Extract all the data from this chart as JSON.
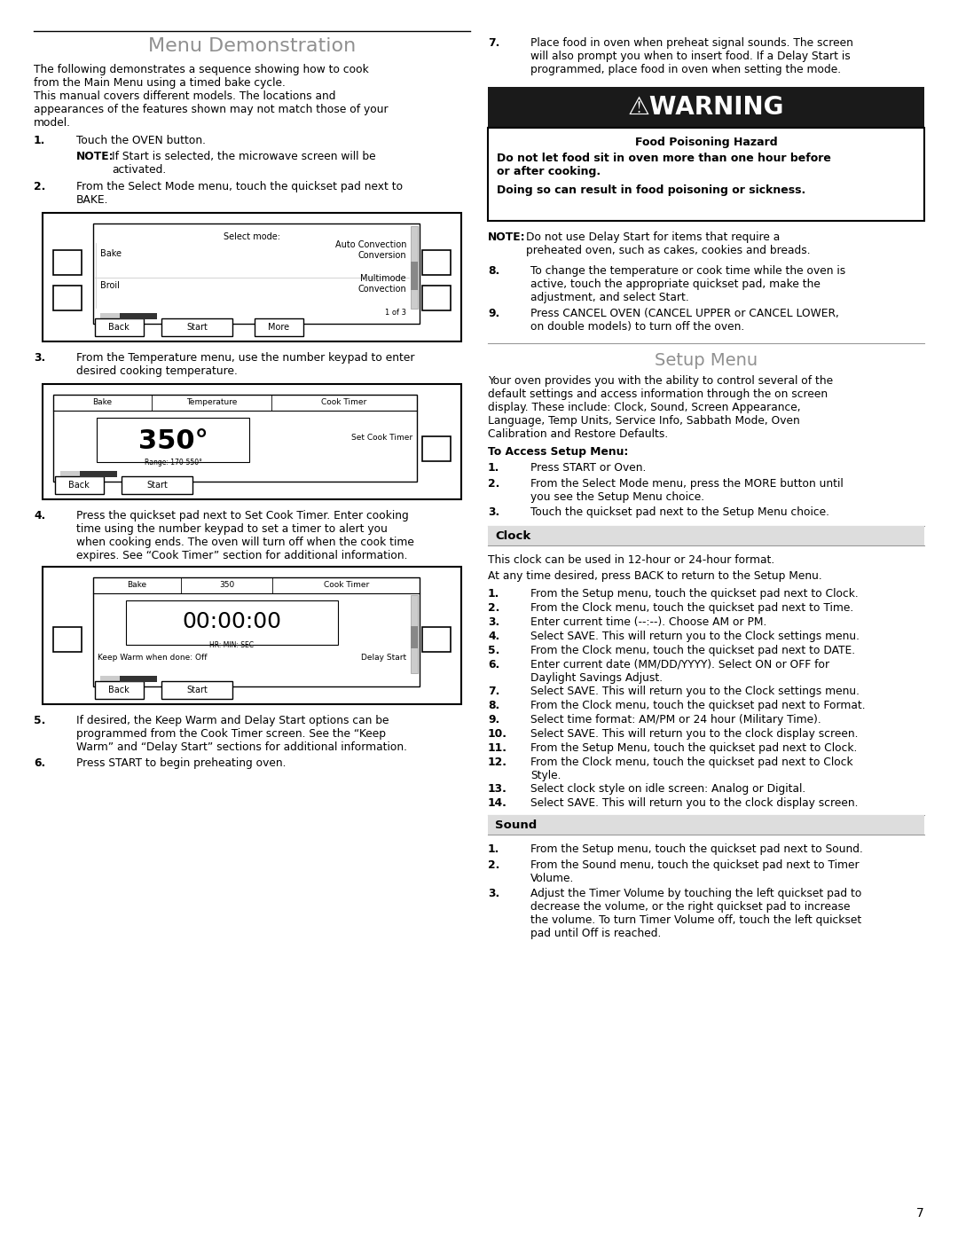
{
  "page_bg": "#ffffff",
  "page_number": "7",
  "menu_demo_title": "Menu Demonstration",
  "menu_demo_title_color": "#909090",
  "para1": "The following demonstrates a sequence showing how to cook from the Main Menu using a timed bake cycle.",
  "para2": "This manual covers different models. The locations and appearances of the features shown may not match those of your model.",
  "step1_num": "1.",
  "step1_text": "Touch the OVEN button.",
  "step1_note": "NOTE: If Start is selected, the microwave screen will be activated.",
  "step2_num": "2.",
  "step2_text": "From the Select Mode menu, touch the quickset pad next to BAKE.",
  "step3_num": "3.",
  "step3_text": "From the Temperature menu, use the number keypad to enter desired cooking temperature.",
  "step4_num": "4.",
  "step4_text": "Press the quickset pad next to Set Cook Timer. Enter cooking time using the number keypad to set a timer to alert you when cooking ends. The oven will turn off when the cook time expires. See “Cook Timer” section for additional information.",
  "step5_num": "5.",
  "step5_text": "If desired, the Keep Warm and Delay Start options can be programmed from the Cook Timer screen. See the “Keep Warm” and “Delay Start” sections for additional information.",
  "step6_num": "6.",
  "step6_text": "Press START to begin preheating oven.",
  "step7_num": "7.",
  "step7_text": "Place food in oven when preheat signal sounds. The screen will also prompt you when to insert food. If a Delay Start is programmed, place food in oven when setting the mode.",
  "warning_title_text": "⚠WARNING",
  "warning_food_hazard": "Food Poisoning Hazard",
  "warning_body1": "Do not let food sit in oven more than one hour before or after cooking.",
  "warning_body2": "Doing so can result in food poisoning or sickness.",
  "note8_text": "NOTE: Do not use Delay Start for items that require a preheated oven, such as cakes, cookies and breads.",
  "step8_num": "8.",
  "step8_text": "To change the temperature or cook time while the oven is active, touch the appropriate quickset pad, make the adjustment, and select Start.",
  "step9_num": "9.",
  "step9_text": "Press CANCEL OVEN (CANCEL UPPER or CANCEL LOWER, on double models) to turn off the oven.",
  "setup_menu_title": "Setup Menu",
  "setup_menu_title_color": "#909090",
  "setup_para": "Your oven provides you with the ability to control several of the default settings and access information through the on screen display. These include: Clock, Sound, Screen Appearance, Language, Temp Units, Service Info, Sabbath Mode, Oven Calibration and Restore Defaults.",
  "access_title": "To Access Setup Menu:",
  "access_steps": [
    "Press START or Oven.",
    "From the Select Mode menu, press the MORE button until you see the Setup Menu choice.",
    "Touch the quickset pad next to the Setup Menu choice."
  ],
  "clock_title": "Clock",
  "clock_para1": "This clock can be used in 12-hour or 24-hour format.",
  "clock_para2": "At any time desired, press BACK to return to the Setup Menu.",
  "clock_steps": [
    "From the Setup menu, touch the quickset pad next to Clock.",
    "From the Clock menu, touch the quickset pad next to Time.",
    "Enter current time (--:--). Choose AM or PM.",
    "Select SAVE. This will return you to the Clock settings menu.",
    "From the Clock menu, touch the quickset pad next to DATE.",
    "Enter current date (MM/DD/YYYY). Select ON or OFF for Daylight Savings Adjust.",
    "Select SAVE. This will return you to the Clock settings menu.",
    "From the Clock menu, touch the quickset pad next to Format.",
    "Select time format: AM/PM or 24 hour (Military Time).",
    "Select SAVE. This will return you to the clock display screen.",
    "From the Setup Menu, touch the quickset pad next to Clock.",
    "From the Clock menu, touch the quickset pad next to Clock Style.",
    "Select clock style on idle screen: Analog or Digital.",
    "Select SAVE. This will return you to the clock display screen."
  ],
  "sound_title": "Sound",
  "sound_steps": [
    "From the Setup menu, touch the quickset pad next to Sound.",
    "From the Sound menu, touch the quickset pad next to Timer Volume.",
    "Adjust the Timer Volume by touching the left quickset pad to decrease the volume, or the right quickset pad to increase the volume. To turn Timer Volume off, touch the left quickset pad until Off is reached."
  ],
  "font_body": 8.8,
  "font_note": 8.8,
  "font_title": 16,
  "font_section": 14
}
